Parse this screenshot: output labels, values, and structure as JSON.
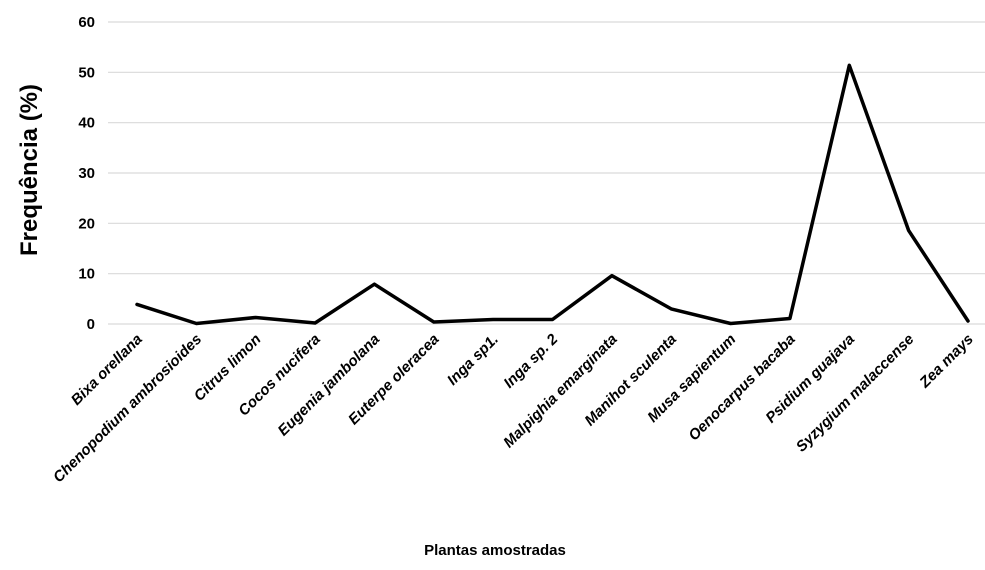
{
  "chart_data": {
    "type": "line",
    "title": "",
    "xlabel": "Plantas amostradas",
    "ylabel": "Frequência (%)",
    "ylim": [
      0,
      60
    ],
    "yticks": [
      0,
      10,
      20,
      30,
      40,
      50,
      60
    ],
    "grid": true,
    "legend": "none",
    "categories": [
      "Bixa orellana",
      "Chenopodium ambrosioides",
      "Citrus limon",
      "Cocos nucifera",
      "Eugenia jambolana",
      "Euterpe oleracea",
      "Inga sp1.",
      "Inga sp. 2",
      "Malpighia emarginata",
      "Manihot sculenta",
      "Musa sapientum",
      "Oenocarpus bacaba",
      "Psidium guajava",
      "Syzygium malaccense",
      "Zea mays"
    ],
    "series": [
      {
        "values": [
          3.9,
          0.1,
          1.3,
          0.2,
          7.9,
          0.4,
          0.9,
          0.9,
          9.6,
          3.0,
          0.1,
          1.1,
          51.4,
          18.6,
          0.6
        ],
        "color": "#000000"
      }
    ]
  }
}
